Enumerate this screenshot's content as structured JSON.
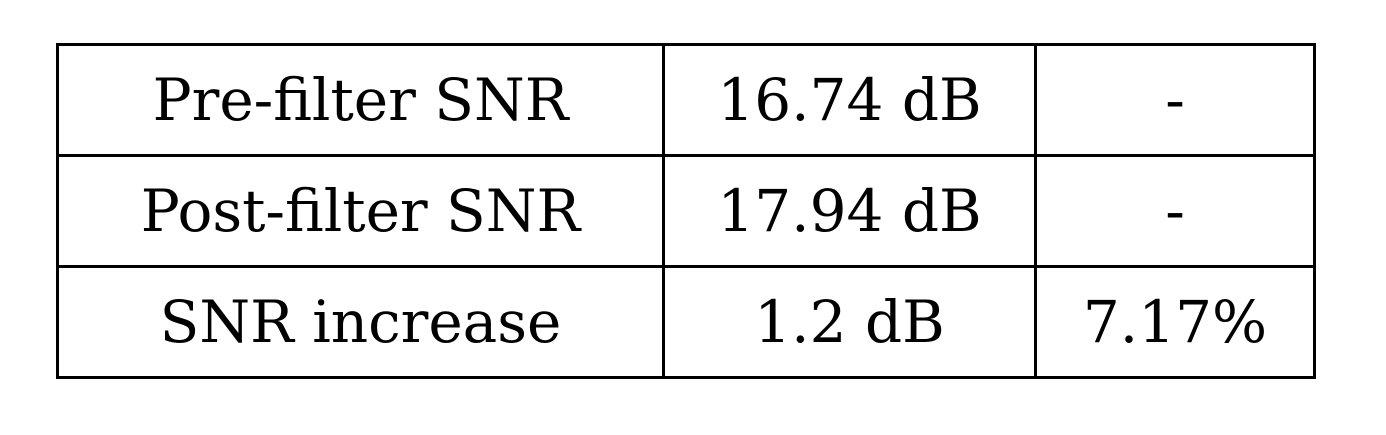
{
  "table": {
    "rows": [
      {
        "label": "Pre-filter SNR",
        "value": "16.74 dB",
        "percent": "-"
      },
      {
        "label": "Post-filter SNR",
        "value": "17.94 dB",
        "percent": "-"
      },
      {
        "label": "SNR increase",
        "value": "1.2 dB",
        "percent": "7.17%"
      }
    ]
  }
}
